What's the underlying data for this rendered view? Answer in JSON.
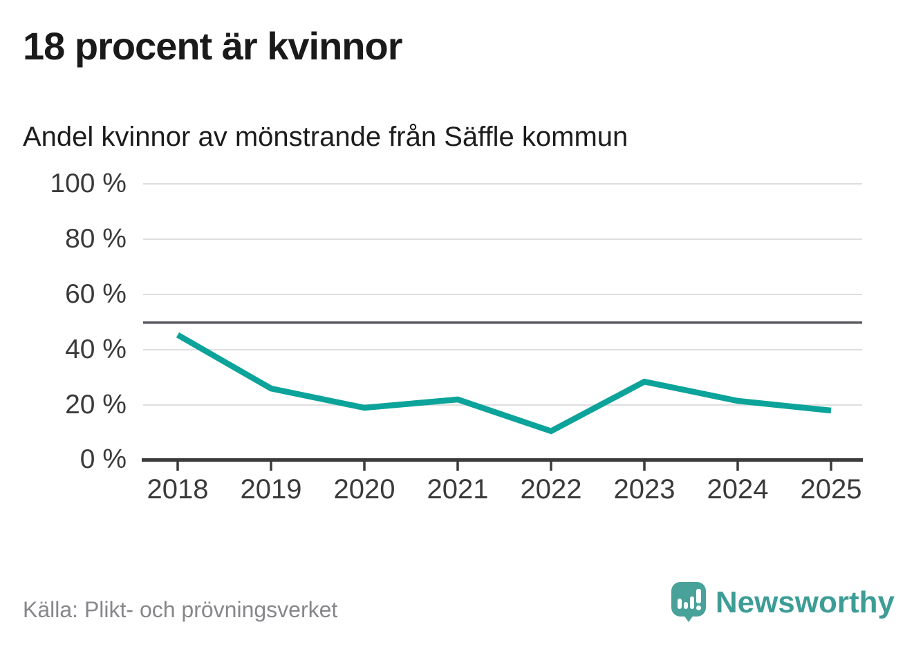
{
  "header": {
    "title": "18 procent är kvinnor",
    "subtitle": "Andel kvinnor av mönstrande från Säffle kommun"
  },
  "footer": {
    "source": "Källa: Plikt- och prövningsverket",
    "brand_name": "Newsworthy"
  },
  "colors": {
    "line": "#0ca39a",
    "reference_line": "#56565e",
    "grid": "#dedede",
    "axis": "#3b3b3b",
    "brand": "#3d9d96"
  },
  "chart_data": {
    "type": "line",
    "title": "Andel kvinnor av mönstrande från Säffle kommun",
    "x": [
      2018,
      2019,
      2020,
      2021,
      2022,
      2023,
      2024,
      2025
    ],
    "series": [
      {
        "name": "Andel kvinnor",
        "values": [
          45.5,
          26,
          19,
          22,
          10.5,
          28.5,
          21.5,
          18
        ]
      }
    ],
    "xlabel": "",
    "ylabel": "",
    "ylim": [
      0,
      100
    ],
    "unit": "%",
    "yticks": [
      "100 %",
      "80 %",
      "60 %",
      "40 %",
      "20 %",
      "0 %"
    ],
    "xticks": [
      "2018",
      "2019",
      "2020",
      "2021",
      "2022",
      "2023",
      "2024",
      "2025"
    ],
    "reference_line_value": 50,
    "grid": true,
    "legend": false
  }
}
